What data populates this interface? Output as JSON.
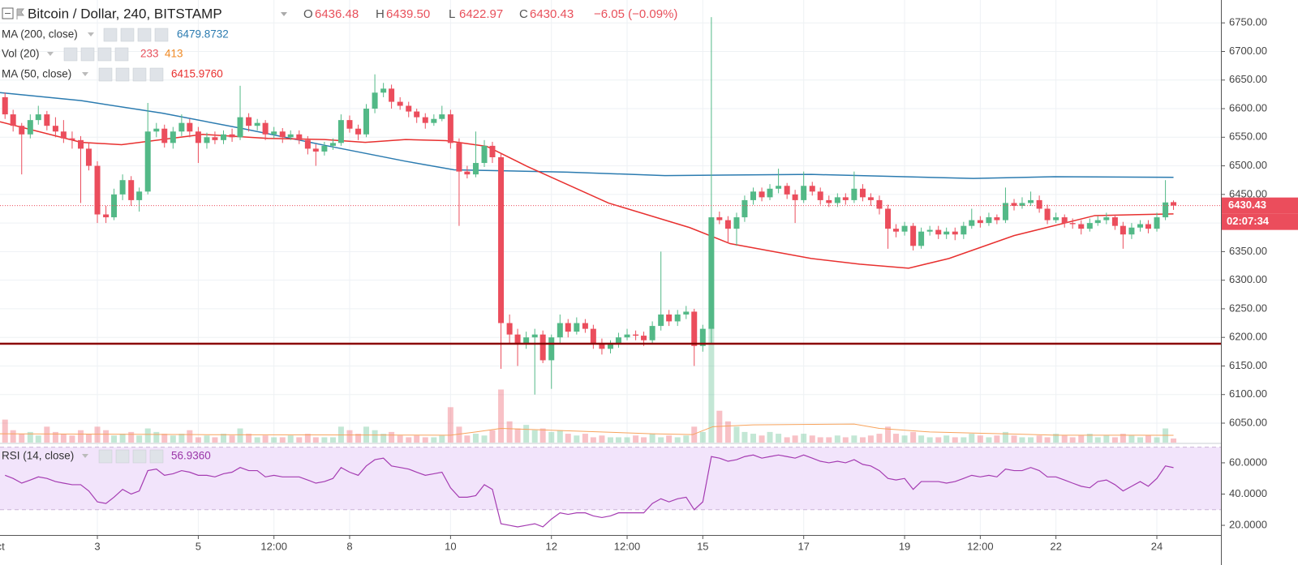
{
  "chart_data": {
    "type": "candlestick",
    "header": {
      "symbol": "Bitcoin / Dollar, 240, BITSTAMP",
      "ohlc": [
        {
          "label": "O",
          "value": "6436.48"
        },
        {
          "label": "H",
          "value": "6439.50"
        },
        {
          "label": "L",
          "value": "6422.97"
        },
        {
          "label": "C",
          "value": "6430.43"
        }
      ],
      "change": "−6.05 (−0.09%)"
    },
    "x": [
      1.17,
      1.33,
      1.5,
      1.67,
      1.83,
      2,
      2.17,
      2.33,
      2.5,
      2.67,
      2.83,
      3,
      3.17,
      3.33,
      3.5,
      3.67,
      3.83,
      4,
      4.17,
      4.33,
      4.5,
      4.67,
      4.83,
      5,
      5.17,
      5.33,
      5.5,
      5.67,
      5.83,
      6,
      6.17,
      6.33,
      6.5,
      6.67,
      6.83,
      7,
      7.17,
      7.33,
      7.5,
      7.67,
      7.83,
      8,
      8.17,
      8.33,
      8.5,
      8.67,
      8.83,
      9,
      9.17,
      9.33,
      9.5,
      9.67,
      9.83,
      10,
      10.17,
      10.33,
      10.5,
      10.67,
      10.83,
      11,
      11.17,
      11.33,
      11.5,
      11.67,
      11.83,
      12,
      12.17,
      12.33,
      12.5,
      12.67,
      12.83,
      13,
      13.17,
      13.33,
      13.5,
      13.67,
      13.83,
      14,
      14.17,
      14.33,
      14.5,
      14.67,
      14.83,
      15,
      15.17,
      15.33,
      15.5,
      15.67,
      15.83,
      16,
      16.17,
      16.33,
      16.5,
      16.67,
      16.83,
      17,
      17.17,
      17.33,
      17.5,
      17.67,
      17.83,
      18,
      18.17,
      18.33,
      18.5,
      18.67,
      18.83,
      19,
      19.17,
      19.33,
      19.5,
      19.67,
      19.83,
      20,
      20.17,
      20.33,
      20.5,
      20.67,
      20.83,
      21,
      21.17,
      21.33,
      21.5,
      21.67,
      21.83,
      22,
      22.17,
      22.33,
      22.5,
      22.67,
      22.83,
      23,
      23.17,
      23.33,
      23.5,
      23.67,
      23.83,
      24,
      24.17,
      24.33
    ],
    "xlim": [
      1.07,
      25.27
    ],
    "xticks": [
      {
        "value": 1,
        "label": "Oct"
      },
      3,
      5,
      {
        "value": 6.5,
        "label": "12:00"
      },
      8,
      10,
      12,
      {
        "value": 13.5,
        "label": "12:00"
      },
      15,
      17,
      19,
      {
        "value": 20.5,
        "label": "12:00"
      },
      22,
      24
    ],
    "ylim": [
      6016,
      6790
    ],
    "yticks": [
      {
        "value": 6050,
        "label": "6050.00"
      },
      {
        "value": 6100,
        "label": "6100.00"
      },
      {
        "value": 6150,
        "label": "6150.00"
      },
      {
        "value": 6200,
        "label": "6200.00"
      },
      {
        "value": 6250,
        "label": "6250.00"
      },
      {
        "value": 6300,
        "label": "6300.00"
      },
      {
        "value": 6350,
        "label": "6350.00"
      },
      {
        "value": 6400,
        "label": "6400.00"
      },
      {
        "value": 6450,
        "label": "6450.00"
      },
      {
        "value": 6500,
        "label": "6500.00"
      },
      {
        "value": 6550,
        "label": "6550.00"
      },
      {
        "value": 6600,
        "label": "6600.00"
      },
      {
        "value": 6650,
        "label": "6650.00"
      },
      {
        "value": 6700,
        "label": "6700.00"
      },
      {
        "value": 6750,
        "label": "6750.00"
      }
    ],
    "grid": true,
    "up_color": "#53b987",
    "down_color": "#eb4d5c",
    "candles": [
      [
        6620,
        6628,
        6582,
        6590
      ],
      [
        6590,
        6598,
        6560,
        6570
      ],
      [
        6570,
        6575,
        6485,
        6555
      ],
      [
        6555,
        6590,
        6548,
        6580
      ],
      [
        6580,
        6605,
        6572,
        6590
      ],
      [
        6590,
        6596,
        6562,
        6570
      ],
      [
        6570,
        6585,
        6550,
        6560
      ],
      [
        6560,
        6580,
        6540,
        6548
      ],
      [
        6548,
        6560,
        6530,
        6545
      ],
      [
        6545,
        6552,
        6435,
        6530
      ],
      [
        6530,
        6540,
        6492,
        6500
      ],
      [
        6500,
        6508,
        6400,
        6415
      ],
      [
        6415,
        6430,
        6400,
        6410
      ],
      [
        6410,
        6460,
        6405,
        6450
      ],
      [
        6450,
        6485,
        6440,
        6475
      ],
      [
        6475,
        6482,
        6430,
        6440
      ],
      [
        6440,
        6462,
        6420,
        6455
      ],
      [
        6455,
        6610,
        6450,
        6560
      ],
      [
        6560,
        6575,
        6550,
        6565
      ],
      [
        6565,
        6572,
        6532,
        6540
      ],
      [
        6540,
        6568,
        6530,
        6560
      ],
      [
        6560,
        6590,
        6552,
        6575
      ],
      [
        6575,
        6582,
        6550,
        6560
      ],
      [
        6560,
        6568,
        6505,
        6540
      ],
      [
        6540,
        6558,
        6530,
        6550
      ],
      [
        6550,
        6560,
        6538,
        6545
      ],
      [
        6545,
        6562,
        6538,
        6555
      ],
      [
        6555,
        6565,
        6542,
        6550
      ],
      [
        6550,
        6640,
        6545,
        6585
      ],
      [
        6585,
        6592,
        6560,
        6570
      ],
      [
        6570,
        6582,
        6562,
        6575
      ],
      [
        6575,
        6580,
        6545,
        6555
      ],
      [
        6555,
        6568,
        6548,
        6560
      ],
      [
        6560,
        6566,
        6540,
        6550
      ],
      [
        6550,
        6562,
        6545,
        6555
      ],
      [
        6555,
        6562,
        6538,
        6545
      ],
      [
        6545,
        6552,
        6520,
        6530
      ],
      [
        6530,
        6538,
        6500,
        6525
      ],
      [
        6525,
        6542,
        6518,
        6535
      ],
      [
        6535,
        6548,
        6528,
        6540
      ],
      [
        6540,
        6590,
        6535,
        6580
      ],
      [
        6580,
        6588,
        6558,
        6565
      ],
      [
        6565,
        6572,
        6545,
        6555
      ],
      [
        6555,
        6608,
        6550,
        6600
      ],
      [
        6600,
        6660,
        6592,
        6628
      ],
      [
        6628,
        6645,
        6620,
        6635
      ],
      [
        6635,
        6642,
        6600,
        6612
      ],
      [
        6612,
        6620,
        6598,
        6605
      ],
      [
        6605,
        6612,
        6585,
        6595
      ],
      [
        6595,
        6600,
        6575,
        6585
      ],
      [
        6585,
        6592,
        6565,
        6575
      ],
      [
        6575,
        6590,
        6570,
        6582
      ],
      [
        6582,
        6605,
        6578,
        6590
      ],
      [
        6590,
        6598,
        6530,
        6540
      ],
      [
        6540,
        6548,
        6395,
        6490
      ],
      [
        6490,
        6500,
        6478,
        6485
      ],
      [
        6485,
        6560,
        6480,
        6505
      ],
      [
        6505,
        6545,
        6498,
        6535
      ],
      [
        6535,
        6542,
        6505,
        6515
      ],
      [
        6515,
        6522,
        6145,
        6225
      ],
      [
        6225,
        6240,
        6190,
        6205
      ],
      [
        6205,
        6215,
        6150,
        6190
      ],
      [
        6190,
        6210,
        6180,
        6200
      ],
      [
        6200,
        6215,
        6100,
        6205
      ],
      [
        6205,
        6212,
        6155,
        6160
      ],
      [
        6160,
        6205,
        6110,
        6200
      ],
      [
        6200,
        6240,
        6190,
        6225
      ],
      [
        6225,
        6232,
        6200,
        6210
      ],
      [
        6210,
        6235,
        6205,
        6225
      ],
      [
        6225,
        6232,
        6208,
        6215
      ],
      [
        6215,
        6222,
        6180,
        6190
      ],
      [
        6190,
        6198,
        6170,
        6180
      ],
      [
        6180,
        6195,
        6172,
        6188
      ],
      [
        6188,
        6208,
        6182,
        6200
      ],
      [
        6200,
        6215,
        6195,
        6205
      ],
      [
        6205,
        6212,
        6195,
        6203
      ],
      [
        6203,
        6210,
        6185,
        6195
      ],
      [
        6195,
        6228,
        6190,
        6220
      ],
      [
        6220,
        6350,
        6212,
        6240
      ],
      [
        6240,
        6248,
        6220,
        6228
      ],
      [
        6228,
        6248,
        6220,
        6240
      ],
      [
        6240,
        6255,
        6232,
        6245
      ],
      [
        6245,
        6250,
        6150,
        6185
      ],
      [
        6185,
        6222,
        6175,
        6215
      ],
      [
        6215,
        6760,
        6190,
        6410
      ],
      [
        6410,
        6420,
        6398,
        6405
      ],
      [
        6405,
        6412,
        6365,
        6390
      ],
      [
        6390,
        6418,
        6360,
        6410
      ],
      [
        6410,
        6448,
        6402,
        6440
      ],
      [
        6440,
        6462,
        6432,
        6455
      ],
      [
        6455,
        6462,
        6438,
        6445
      ],
      [
        6445,
        6468,
        6440,
        6460
      ],
      [
        6460,
        6495,
        6452,
        6465
      ],
      [
        6465,
        6470,
        6442,
        6450
      ],
      [
        6450,
        6458,
        6400,
        6440
      ],
      [
        6440,
        6490,
        6435,
        6465
      ],
      [
        6465,
        6472,
        6448,
        6455
      ],
      [
        6455,
        6462,
        6432,
        6440
      ],
      [
        6440,
        6448,
        6428,
        6435
      ],
      [
        6435,
        6452,
        6428,
        6445
      ],
      [
        6445,
        6452,
        6432,
        6440
      ],
      [
        6440,
        6490,
        6435,
        6460
      ],
      [
        6460,
        6468,
        6438,
        6445
      ],
      [
        6445,
        6452,
        6430,
        6440
      ],
      [
        6440,
        6448,
        6415,
        6425
      ],
      [
        6425,
        6432,
        6355,
        6390
      ],
      [
        6390,
        6398,
        6375,
        6385
      ],
      [
        6385,
        6402,
        6378,
        6395
      ],
      [
        6395,
        6400,
        6352,
        6360
      ],
      [
        6360,
        6392,
        6355,
        6385
      ],
      [
        6385,
        6395,
        6378,
        6388
      ],
      [
        6388,
        6395,
        6372,
        6380
      ],
      [
        6380,
        6392,
        6372,
        6385
      ],
      [
        6385,
        6392,
        6370,
        6380
      ],
      [
        6380,
        6402,
        6372,
        6395
      ],
      [
        6395,
        6425,
        6390,
        6405
      ],
      [
        6405,
        6412,
        6392,
        6400
      ],
      [
        6400,
        6418,
        6395,
        6410
      ],
      [
        6410,
        6415,
        6398,
        6405
      ],
      [
        6405,
        6462,
        6400,
        6435
      ],
      [
        6435,
        6442,
        6422,
        6430
      ],
      [
        6430,
        6445,
        6425,
        6435
      ],
      [
        6435,
        6455,
        6430,
        6440
      ],
      [
        6440,
        6448,
        6418,
        6425
      ],
      [
        6425,
        6432,
        6398,
        6405
      ],
      [
        6405,
        6418,
        6400,
        6410
      ],
      [
        6410,
        6415,
        6392,
        6400
      ],
      [
        6400,
        6408,
        6390,
        6398
      ],
      [
        6398,
        6405,
        6380,
        6390
      ],
      [
        6390,
        6408,
        6385,
        6400
      ],
      [
        6400,
        6412,
        6395,
        6405
      ],
      [
        6405,
        6418,
        6398,
        6410
      ],
      [
        6410,
        6415,
        6388,
        6395
      ],
      [
        6395,
        6402,
        6355,
        6380
      ],
      [
        6380,
        6400,
        6372,
        6392
      ],
      [
        6392,
        6405,
        6385,
        6398
      ],
      [
        6398,
        6405,
        6382,
        6390
      ],
      [
        6390,
        6418,
        6385,
        6410
      ],
      [
        6410,
        6475,
        6405,
        6436
      ],
      [
        6436.48,
        6439.5,
        6422.97,
        6430.43
      ]
    ],
    "price_tag_time": "02:07:34",
    "horizontal_line": {
      "value": 6189,
      "color": "#8b0000"
    },
    "ma200": {
      "name": "MA (200, close)",
      "value_label": "6479.8732",
      "color": "#2b7bb0",
      "x": [
        1.07,
        2.68,
        4.29,
        5.89,
        7.5,
        9.11,
        10.07,
        12.32,
        14.25,
        17.15,
        20.36,
        21.97,
        24.33
      ],
      "values": [
        6628,
        6614,
        6592,
        6565,
        6536,
        6508,
        6493,
        6489,
        6483,
        6485,
        6478,
        6481,
        6479.8732
      ]
    },
    "volume": {
      "name": "Vol (20)",
      "value_label": "233",
      "ma_label": "413",
      "ylim": [
        0,
        25000
      ],
      "ma_color": "#f7a35c",
      "values": [
        1300,
        700,
        500,
        600,
        400,
        900,
        600,
        500,
        400,
        700,
        500,
        900,
        700,
        400,
        500,
        600,
        400,
        800,
        600,
        500,
        400,
        500,
        700,
        300,
        400,
        300,
        500,
        400,
        800,
        500,
        300,
        400,
        300,
        300,
        400,
        300,
        500,
        300,
        300,
        300,
        900,
        700,
        500,
        900,
        700,
        500,
        600,
        400,
        300,
        400,
        300,
        300,
        400,
        2000,
        900,
        400,
        500,
        400,
        700,
        3000,
        1200,
        800,
        1000,
        700,
        800,
        600,
        700,
        500,
        400,
        500,
        300,
        400,
        300,
        300,
        300,
        400,
        300,
        500,
        300,
        400,
        300,
        400,
        900,
        600,
        6500,
        1800,
        1200,
        900,
        600,
        500,
        400,
        600,
        500,
        300,
        400,
        500,
        400,
        300,
        300,
        400,
        300,
        400,
        300,
        400,
        500,
        900,
        500,
        400,
        600,
        400,
        300,
        300,
        400,
        300,
        300,
        500,
        400,
        300,
        400,
        600,
        400,
        300,
        300,
        400,
        300,
        500,
        400,
        300,
        400,
        500,
        300,
        400,
        300,
        500,
        400,
        300,
        400,
        300,
        800,
        233
      ],
      "ma_x": [
        1.07,
        5,
        10,
        10.5,
        11,
        12,
        14,
        14.8,
        15.2,
        16,
        18,
        18.5,
        19.5,
        22,
        24.33
      ],
      "ma_values": [
        500,
        450,
        420,
        600,
        800,
        700,
        500,
        450,
        900,
        1000,
        1050,
        800,
        600,
        420,
        413
      ]
    },
    "ma50": {
      "name": "MA (50, close)",
      "value_label": "6415.9760",
      "color": "#e8302f",
      "x": [
        1.07,
        2.68,
        3.48,
        5.09,
        6.38,
        7.5,
        8.31,
        9.11,
        9.91,
        10.72,
        11.52,
        13.13,
        14.74,
        15.54,
        17.15,
        18.11,
        19.08,
        19.88,
        21.17,
        22.77,
        24.33
      ],
      "values": [
        6577,
        6541,
        6537,
        6555,
        6548,
        6546,
        6541,
        6546,
        6544,
        6534,
        6499,
        6435,
        6392,
        6364,
        6338,
        6328,
        6321,
        6338,
        6378,
        6413,
        6415.976
      ]
    },
    "rsi": {
      "name": "RSI (14, close)",
      "value_label": "56.9360",
      "color": "#a53cb2",
      "band": [
        30,
        70
      ],
      "band_color": "#f2e4fb",
      "ylim": [
        13.8,
        71.9
      ],
      "yticks": [
        {
          "value": 20,
          "label": "20.0000"
        },
        {
          "value": 40,
          "label": "40.0000"
        },
        {
          "value": 60,
          "label": "60.0000"
        }
      ],
      "values": [
        52,
        50,
        47,
        49,
        51,
        50,
        48,
        47,
        46,
        46,
        42,
        35,
        34,
        38,
        43,
        40,
        42,
        55,
        56,
        52,
        53,
        55,
        54,
        52,
        52,
        51,
        53,
        54,
        57,
        55,
        55,
        51,
        52,
        51,
        51,
        51,
        49,
        47,
        48,
        50,
        57,
        54,
        52,
        58,
        62,
        63,
        58,
        57,
        56,
        54,
        52,
        53,
        54,
        44,
        38,
        38,
        39,
        46,
        43,
        21,
        20,
        19,
        20,
        21,
        19,
        24,
        28,
        27,
        28,
        28,
        26,
        25,
        26,
        28,
        28,
        28,
        28,
        34,
        37,
        35,
        37,
        38,
        30,
        35,
        64,
        63,
        61,
        62,
        64,
        65,
        63,
        64,
        65,
        64,
        63,
        65,
        63,
        61,
        60,
        61,
        60,
        62,
        59,
        58,
        55,
        50,
        49,
        50,
        43,
        48,
        48,
        48,
        47,
        48,
        50,
        52,
        51,
        52,
        51,
        56,
        55,
        55,
        57,
        55,
        51,
        51,
        49,
        47,
        45,
        44,
        48,
        49,
        46,
        42,
        45,
        48,
        45,
        50,
        58,
        56.936
      ]
    }
  }
}
